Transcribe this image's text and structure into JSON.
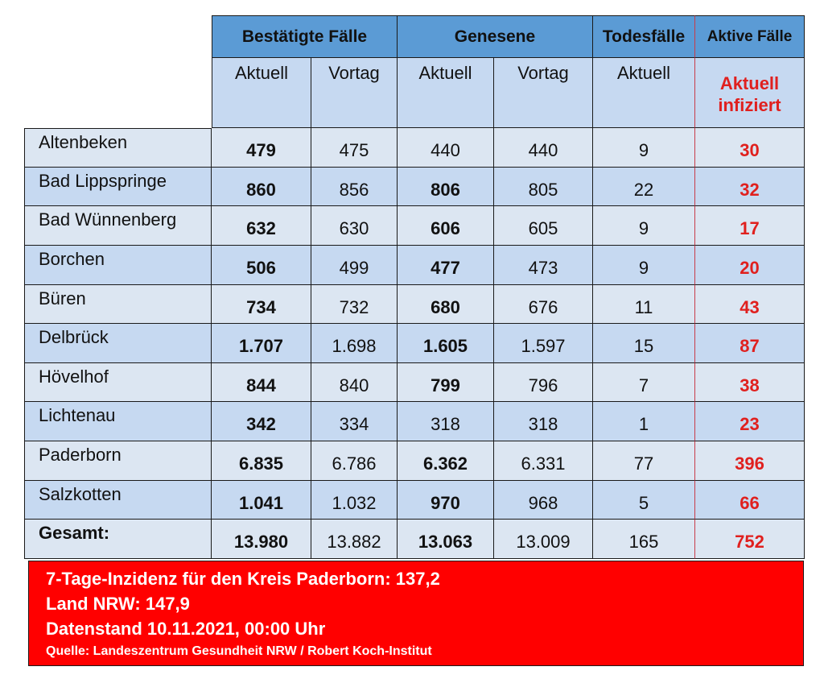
{
  "header": {
    "groups": [
      "Bestätigte Fälle",
      "Genesene",
      "Todesfälle",
      "Aktive Fälle"
    ],
    "sub": [
      "Aktuell",
      "Vortag",
      "Aktuell",
      "Vortag",
      "Aktuell"
    ],
    "active_sub": [
      "Aktuell",
      "infiziert"
    ]
  },
  "rows": [
    {
      "name": "Altenbeken",
      "conf_cur": "479",
      "conf_prev": "475",
      "rec_cur": "440",
      "rec_prev": "440",
      "deaths": "9",
      "active": "30"
    },
    {
      "name": "Bad Lippspringe",
      "conf_cur": "860",
      "conf_prev": "856",
      "rec_cur": "806",
      "rec_prev": "805",
      "deaths": "22",
      "active": "32"
    },
    {
      "name": "Bad Wünnenberg",
      "conf_cur": "632",
      "conf_prev": "630",
      "rec_cur": "606",
      "rec_prev": "605",
      "deaths": "9",
      "active": "17"
    },
    {
      "name": "Borchen",
      "conf_cur": "506",
      "conf_prev": "499",
      "rec_cur": "477",
      "rec_prev": "473",
      "deaths": "9",
      "active": "20"
    },
    {
      "name": "Büren",
      "conf_cur": "734",
      "conf_prev": "732",
      "rec_cur": "680",
      "rec_prev": "676",
      "deaths": "11",
      "active": "43"
    },
    {
      "name": "Delbrück",
      "conf_cur": "1.707",
      "conf_prev": "1.698",
      "rec_cur": "1.605",
      "rec_prev": "1.597",
      "deaths": "15",
      "active": "87"
    },
    {
      "name": "Hövelhof",
      "conf_cur": "844",
      "conf_prev": "840",
      "rec_cur": "799",
      "rec_prev": "796",
      "deaths": "7",
      "active": "38"
    },
    {
      "name": "Lichtenau",
      "conf_cur": "342",
      "conf_prev": "334",
      "rec_cur": "318",
      "rec_prev": "318",
      "deaths": "1",
      "active": "23"
    },
    {
      "name": "Paderborn",
      "conf_cur": "6.835",
      "conf_prev": "6.786",
      "rec_cur": "6.362",
      "rec_prev": "6.331",
      "deaths": "77",
      "active": "396"
    },
    {
      "name": "Salzkotten",
      "conf_cur": "1.041",
      "conf_prev": "1.032",
      "rec_cur": "970",
      "rec_prev": "968",
      "deaths": "5",
      "active": "66"
    },
    {
      "name": "Gesamt:",
      "conf_cur": "13.980",
      "conf_prev": "13.882",
      "rec_cur": "13.063",
      "rec_prev": "13.009",
      "deaths": "165",
      "active": "752"
    }
  ],
  "rec_cur_bold": [
    false,
    true,
    true,
    true,
    true,
    true,
    true,
    false,
    true,
    true,
    true
  ],
  "info": {
    "line1": "7-Tage-Inzidenz für den Kreis Paderborn: 137,2",
    "line2": "Land NRW: 147,9",
    "line3": "Datenstand 10.11.2021, 00:00 Uhr",
    "source": "Quelle: Landeszentrum Gesundheit NRW / Robert Koch-Institut"
  },
  "colors": {
    "header_blue": "#5b9bd5",
    "row_light": "#dce6f2",
    "row_dark": "#c6d9f1",
    "accent_red": "#e0201e",
    "banner_red": "#ff0000"
  }
}
